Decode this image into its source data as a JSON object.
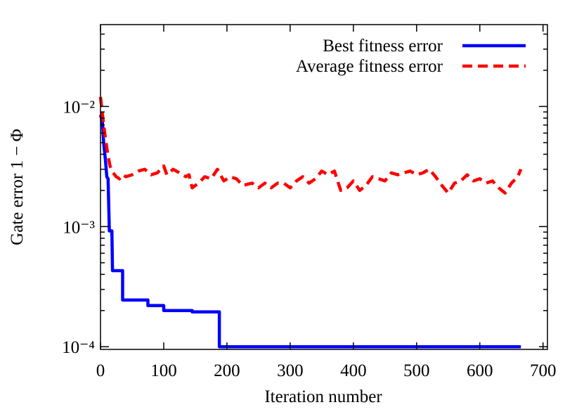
{
  "chart_data": {
    "type": "line",
    "log_y": true,
    "xlabel": "Iteration number",
    "ylabel": "Gate error 1 − Φ",
    "xlim": [
      0,
      707
    ],
    "xticks": [
      0,
      100,
      200,
      300,
      400,
      500,
      600,
      700
    ],
    "ylim": [
      9.5e-05,
      0.048
    ],
    "yticks": [
      {
        "value": 0.0001,
        "label": "10⁻⁴"
      },
      {
        "value": 0.001,
        "label": "10⁻³"
      },
      {
        "value": 0.01,
        "label": "10⁻²"
      }
    ],
    "yminorticks": [
      0.0002,
      0.0003,
      0.0004,
      0.0005,
      0.0006,
      0.0007,
      0.0008,
      0.0009,
      0.002,
      0.003,
      0.004,
      0.005,
      0.006,
      0.007,
      0.008,
      0.009,
      0.02,
      0.03,
      0.04
    ],
    "legend": "upper right",
    "series": [
      {
        "name": "Best fitness error",
        "color": "#0000ff",
        "dash": false,
        "x": [
          0,
          3,
          5,
          8,
          10,
          12,
          14,
          18,
          19,
          35,
          35,
          75,
          75,
          100,
          100,
          145,
          145,
          188,
          188,
          665
        ],
        "values": [
          0.0085,
          0.0075,
          0.005,
          0.0035,
          0.0026,
          0.0025,
          0.00092,
          0.00092,
          0.00043,
          0.00043,
          0.000245,
          0.000245,
          0.00022,
          0.00022,
          0.0002,
          0.0002,
          0.000195,
          0.000195,
          0.0001,
          0.0001
        ]
      },
      {
        "name": "Average fitness error",
        "color": "#ff0000",
        "dash": true,
        "x": [
          0,
          5,
          10,
          15,
          20,
          25,
          30,
          35,
          40,
          50,
          60,
          70,
          80,
          90,
          100,
          105,
          115,
          125,
          135,
          140,
          145,
          155,
          165,
          175,
          185,
          195,
          205,
          215,
          225,
          240,
          250,
          260,
          270,
          280,
          290,
          300,
          310,
          320,
          330,
          340,
          350,
          360,
          370,
          380,
          390,
          400,
          410,
          420,
          430,
          440,
          450,
          460,
          470,
          480,
          490,
          500,
          510,
          520,
          530,
          540,
          550,
          560,
          570,
          580,
          590,
          600,
          610,
          620,
          630,
          640,
          650,
          660,
          665
        ],
        "values": [
          0.012,
          0.007,
          0.0045,
          0.0032,
          0.0028,
          0.0026,
          0.0025,
          0.0027,
          0.0026,
          0.0027,
          0.0029,
          0.003,
          0.0027,
          0.0028,
          0.0032,
          0.0027,
          0.003,
          0.0028,
          0.0026,
          0.0027,
          0.0021,
          0.0023,
          0.0026,
          0.0025,
          0.003,
          0.0024,
          0.0026,
          0.0025,
          0.0022,
          0.0023,
          0.0021,
          0.0023,
          0.0021,
          0.0023,
          0.0023,
          0.0021,
          0.0024,
          0.0026,
          0.0023,
          0.0025,
          0.0029,
          0.0027,
          0.0029,
          0.002,
          0.0021,
          0.0024,
          0.002,
          0.0022,
          0.0026,
          0.0025,
          0.0024,
          0.0028,
          0.0027,
          0.0028,
          0.0029,
          0.0027,
          0.0028,
          0.003,
          0.0026,
          0.0022,
          0.0019,
          0.0023,
          0.0024,
          0.0027,
          0.0024,
          0.0025,
          0.0023,
          0.0024,
          0.0021,
          0.0019,
          0.0023,
          0.0026,
          0.003
        ]
      }
    ]
  }
}
